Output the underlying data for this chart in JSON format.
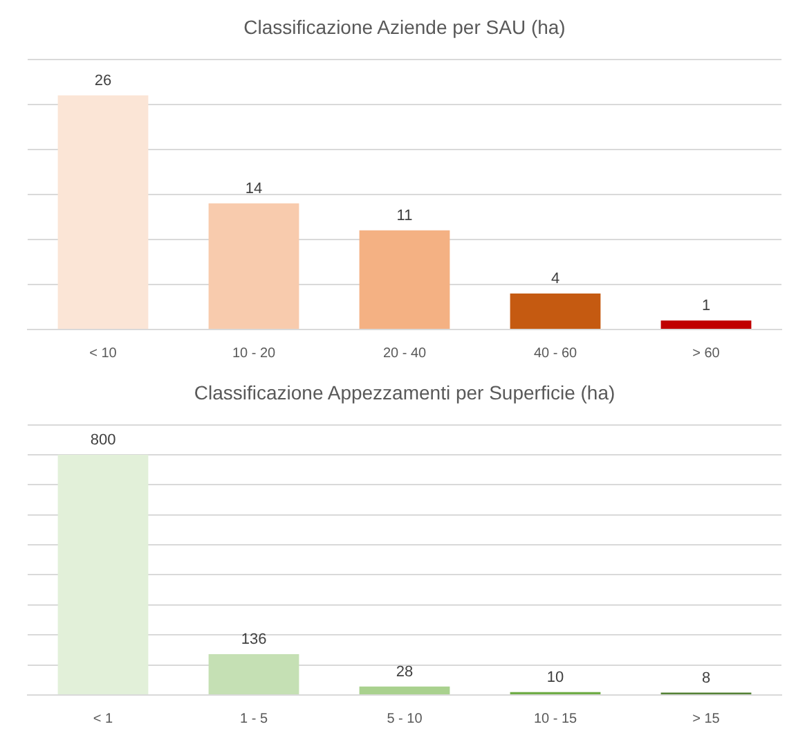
{
  "chart_data": [
    {
      "type": "bar",
      "title": "Classificazione Aziende per SAU (ha)",
      "categories": [
        "< 10",
        "10 - 20",
        "20 - 40",
        "40 - 60",
        "> 60"
      ],
      "values": [
        26,
        14,
        11,
        4,
        1
      ],
      "colors": [
        "#fbe5d6",
        "#f8cbad",
        "#f4b183",
        "#c55a11",
        "#c00000"
      ],
      "ylim": [
        0,
        30
      ],
      "yticks": [
        {
          "value": 0,
          "label": null
        },
        {
          "value": 5,
          "label": null
        },
        {
          "value": 10,
          "label": null
        },
        {
          "value": 15,
          "label": null
        },
        {
          "value": 20,
          "label": null
        },
        {
          "value": 25,
          "label": null
        },
        {
          "value": 30,
          "label": null
        }
      ],
      "grid": "y",
      "data_labels": true,
      "tick_labels": "x"
    },
    {
      "type": "bar",
      "title": "Classificazione Appezzamenti per Superficie (ha)",
      "categories": [
        "< 1",
        "1 - 5",
        "5 - 10",
        "10 - 15",
        "> 15"
      ],
      "values": [
        800,
        136,
        28,
        10,
        8
      ],
      "colors": [
        "#e2f0d9",
        "#c5e0b4",
        "#a9d18e",
        "#70ad47",
        "#548235"
      ],
      "ylim": [
        0,
        900
      ],
      "yticks": [
        {
          "value": 0,
          "label": null
        },
        {
          "value": 100,
          "label": null
        },
        {
          "value": 200,
          "label": null
        },
        {
          "value": 300,
          "label": null
        },
        {
          "value": 400,
          "label": null
        },
        {
          "value": 500,
          "label": null
        },
        {
          "value": 600,
          "label": null
        },
        {
          "value": 700,
          "label": null
        },
        {
          "value": 800,
          "label": null
        },
        {
          "value": 900,
          "label": null
        }
      ],
      "grid": "y",
      "data_labels": true,
      "tick_labels": "x"
    }
  ]
}
